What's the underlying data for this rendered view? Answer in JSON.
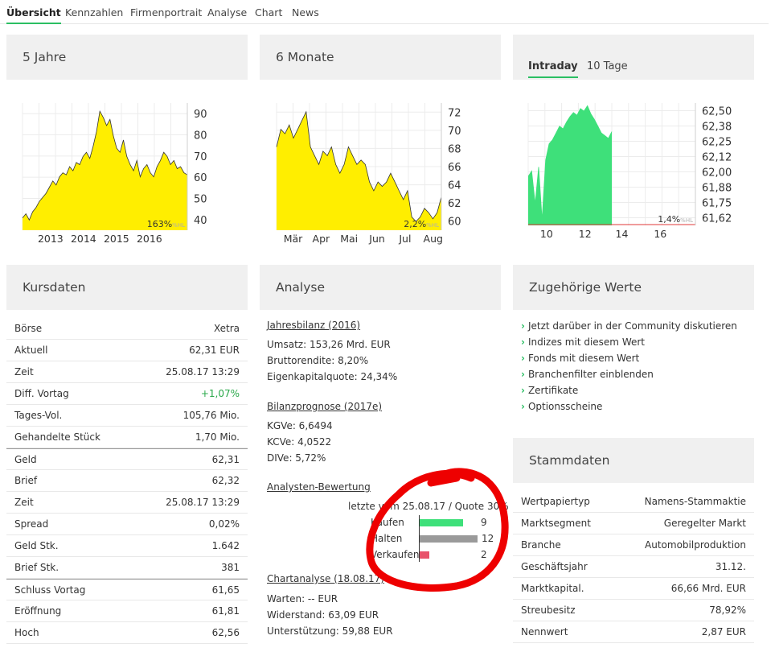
{
  "nav": {
    "tabs": [
      "Übersicht",
      "Kennzahlen",
      "Firmenportrait",
      "Analyse",
      "Chart",
      "News"
    ],
    "active": "Übersicht"
  },
  "panels": {
    "five_years": "5 Jahre",
    "six_months": "6 Monate",
    "intraday_tab": "Intraday",
    "ten_days_tab": "10 Tage",
    "kursdaten": "Kursdaten",
    "analyse": "Analyse",
    "zugehoerige": "Zugehörige Werte",
    "stammdaten": "Stammdaten"
  },
  "colors": {
    "accent": "#2bbf63",
    "chart_yellow": "#ffee00",
    "chart_green": "#3ee07a",
    "red_line": "#e03a3a"
  },
  "chart_data": [
    {
      "type": "area",
      "title": "5 Jahre",
      "x_ticks": [
        "2013",
        "2014",
        "2015",
        "2016"
      ],
      "y_ticks": [
        "90",
        "80",
        "70",
        "60",
        "50",
        "40"
      ],
      "ylim": [
        34,
        96
      ],
      "performance": "163%",
      "performance_unit": "%HL",
      "values": [
        40,
        42,
        39,
        43,
        45,
        48,
        50,
        52,
        55,
        58,
        56,
        60,
        62,
        61,
        65,
        63,
        67,
        66,
        70,
        72,
        69,
        75,
        82,
        92,
        89,
        85,
        88,
        80,
        74,
        72,
        78,
        70,
        66,
        63,
        68,
        60,
        64,
        66,
        62,
        60,
        65,
        68,
        72,
        70,
        66,
        68,
        64,
        65,
        62,
        61
      ]
    },
    {
      "type": "area",
      "title": "6 Monate",
      "x_ticks": [
        "Mär",
        "Apr",
        "Mai",
        "Jun",
        "Jul",
        "Aug"
      ],
      "y_ticks": [
        "72",
        "70",
        "68",
        "66",
        "64",
        "62",
        "60"
      ],
      "ylim": [
        58.5,
        73
      ],
      "performance": "2,2%",
      "performance_unit": "%HL",
      "values": [
        68,
        70,
        69.5,
        70.5,
        69,
        70,
        71,
        72,
        68,
        67,
        66,
        67.5,
        67,
        68,
        66,
        65,
        66,
        68,
        67,
        66,
        66.5,
        66,
        64,
        63,
        64,
        63.5,
        64,
        65,
        64,
        63,
        62,
        63,
        60,
        59.5,
        60,
        61,
        60.5,
        59.8,
        60.5,
        62.3
      ]
    },
    {
      "type": "area",
      "title": "Intraday",
      "x_ticks": [
        "10",
        "12",
        "14",
        "16"
      ],
      "y_ticks": [
        "62,50",
        "62,38",
        "62,25",
        "62,12",
        "62,00",
        "61,88",
        "61,75",
        "61,62"
      ],
      "ylim": [
        61.62,
        62.52
      ],
      "performance": "1,4%",
      "performance_unit": "%HL",
      "values": [
        61.98,
        62.02,
        61.78,
        62.05,
        61.66,
        62.1,
        62.22,
        62.25,
        62.3,
        62.35,
        62.33,
        62.38,
        62.42,
        62.45,
        62.43,
        62.48,
        62.46,
        62.5,
        62.44,
        62.4,
        62.35,
        62.3,
        62.28,
        62.26,
        62.31
      ]
    }
  ],
  "kursdaten": [
    {
      "label": "Börse",
      "value": "Xetra"
    },
    {
      "label": "Aktuell",
      "value": "62,31 EUR"
    },
    {
      "label": "Zeit",
      "value": "25.08.17 13:29"
    },
    {
      "label": "Diff. Vortag",
      "value": "+1,07%"
    },
    {
      "label": "Tages-Vol.",
      "value": "105,76 Mio."
    },
    {
      "label": "Gehandelte Stück",
      "value": "1,70 Mio."
    },
    {
      "label": "Geld",
      "value": "62,31"
    },
    {
      "label": "Brief",
      "value": "62,32"
    },
    {
      "label": "Zeit",
      "value": "25.08.17 13:29"
    },
    {
      "label": "Spread",
      "value": "0,02%"
    },
    {
      "label": "Geld Stk.",
      "value": "1.642"
    },
    {
      "label": "Brief Stk.",
      "value": "381"
    },
    {
      "label": "Schluss Vortag",
      "value": "61,65"
    },
    {
      "label": "Eröffnung",
      "value": "61,81"
    },
    {
      "label": "Hoch",
      "value": "62,56"
    }
  ],
  "analyse": {
    "jahresbilanz_link": "Jahresbilanz (2016)",
    "umsatz": "Umsatz: 153,26 Mrd. EUR",
    "bruttorendite": "Bruttorendite: 8,20%",
    "eigenkapital": "Eigenkapitalquote: 24,34%",
    "prognose_link": "Bilanzprognose (2017e)",
    "kgve": "KGVe: 6,6494",
    "kcve": "KCVe: 4,0522",
    "dive": "DIVe: 5,72%",
    "bewertung_link": "Analysten-Bewertung",
    "bewertung_info": "letzte vom 25.08.17 / Quote 30%",
    "ratings": [
      {
        "label": "Kaufen",
        "count": 9,
        "color": "#3ee07a"
      },
      {
        "label": "Halten",
        "count": 12,
        "color": "#9a9a9a"
      },
      {
        "label": "Verkaufen",
        "count": 2,
        "color": "#e8536b"
      }
    ],
    "charttech_link": "Chartanalyse (18.08.17)",
    "warten": "Warten: -- EUR",
    "widerstand": "Widerstand: 63,09 EUR",
    "unterstuetzung": "Unterstützung: 59,88 EUR"
  },
  "zugehoerige": [
    "Jetzt darüber in der Community diskutieren",
    "Indizes mit diesem Wert",
    "Fonds mit diesem Wert",
    "Branchenfilter einblenden",
    "Zertifikate",
    "Optionsscheine"
  ],
  "stammdaten": [
    {
      "label": "Wertpapiertyp",
      "value": "Namens-Stammaktie"
    },
    {
      "label": "Marktsegment",
      "value": "Geregelter Markt"
    },
    {
      "label": "Branche",
      "value": "Automobilproduktion"
    },
    {
      "label": "Geschäftsjahr",
      "value": "31.12."
    },
    {
      "label": "Marktkapital.",
      "value": "66,66 Mrd. EUR"
    },
    {
      "label": "Streubesitz",
      "value": "78,92%"
    },
    {
      "label": "Nennwert",
      "value": "2,87 EUR"
    }
  ]
}
